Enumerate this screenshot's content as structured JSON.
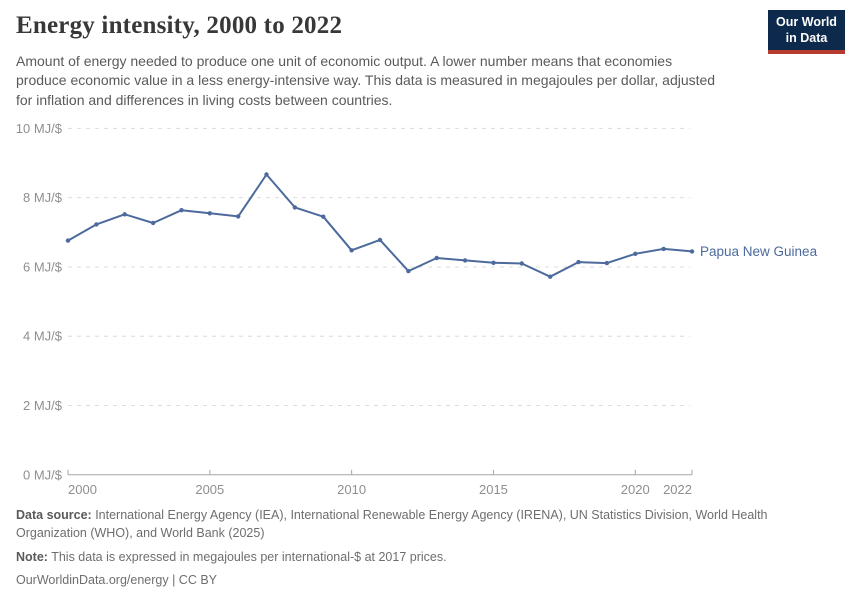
{
  "header": {
    "title": "Energy intensity, 2000 to 2022",
    "subtitle": "Amount of energy needed to produce one unit of economic output. A lower number means that economies produce economic value in a less energy-intensive way. This data is measured in megajoules per dollar, adjusted for inflation and differences in living costs between countries.",
    "logo": {
      "line1": "Our World",
      "line2": "in Data"
    }
  },
  "chart_data": {
    "type": "line",
    "title": "Energy intensity, 2000 to 2022",
    "xlabel": "",
    "ylabel": "MJ/$",
    "xlim": [
      2000,
      2022
    ],
    "ylim": [
      0,
      10
    ],
    "x_ticks": [
      2000,
      2005,
      2010,
      2015,
      2020,
      2022
    ],
    "y_ticks": [
      0,
      2,
      4,
      6,
      8,
      10
    ],
    "y_tick_format": "{v} MJ/$",
    "grid": "horizontal-dashed",
    "legend_position": "end-of-line-label",
    "series": [
      {
        "name": "Papua New Guinea",
        "color": "#4c6a9c",
        "x": [
          2000,
          2001,
          2002,
          2003,
          2004,
          2005,
          2006,
          2007,
          2008,
          2009,
          2010,
          2011,
          2012,
          2013,
          2014,
          2015,
          2016,
          2017,
          2018,
          2019,
          2020,
          2021,
          2022
        ],
        "values": [
          6.76,
          7.23,
          7.52,
          7.27,
          7.64,
          7.55,
          7.46,
          8.67,
          7.72,
          7.45,
          6.48,
          6.78,
          5.88,
          6.26,
          6.19,
          6.12,
          6.1,
          5.72,
          6.14,
          6.11,
          6.38,
          6.52,
          6.45
        ]
      }
    ]
  },
  "footer": {
    "source_label": "Data source:",
    "source_text": " International Energy Agency (IEA), International Renewable Energy Agency (IRENA), UN Statistics Division, World Health Organization (WHO), and World Bank (2025)",
    "note_label": "Note:",
    "note_text": " This data is expressed in megajoules per international-$ at 2017 prices.",
    "link_text": "OurWorldinData.org/energy | CC BY"
  },
  "colors": {
    "line": "#4c6a9c",
    "entity_label": "#4c6a9c",
    "grid": "#dcdcdc",
    "axis": "#a5a5a5",
    "tick_label": "#8f8f8f",
    "logo_bg": "#0d2a4c",
    "logo_bar": "#b63a2e"
  }
}
